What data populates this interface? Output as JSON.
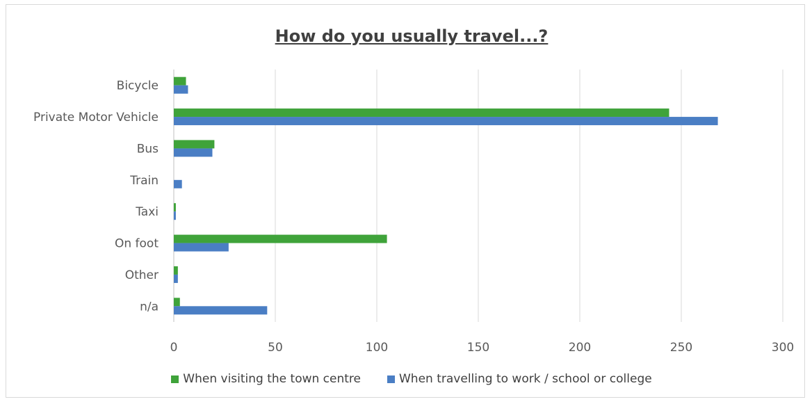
{
  "chart_data": {
    "type": "bar",
    "orientation": "horizontal",
    "title": "How do you usually travel...?",
    "categories": [
      "Bicycle",
      "Private Motor Vehicle",
      "Bus",
      "Train",
      "Taxi",
      "On foot",
      "Other",
      "n/a"
    ],
    "series": [
      {
        "name": "When visiting the town centre",
        "color": "#3fa33a",
        "values": [
          6,
          244,
          20,
          0,
          1,
          105,
          2,
          3
        ]
      },
      {
        "name": "When travelling to work / school or college",
        "color": "#4a7ec4",
        "values": [
          7,
          268,
          19,
          4,
          1,
          27,
          2,
          46
        ]
      }
    ],
    "xlim": [
      0,
      300
    ],
    "xticks": [
      "0",
      "50",
      "100",
      "150",
      "200",
      "250",
      "300"
    ],
    "grid": true,
    "legend_position": "bottom"
  }
}
